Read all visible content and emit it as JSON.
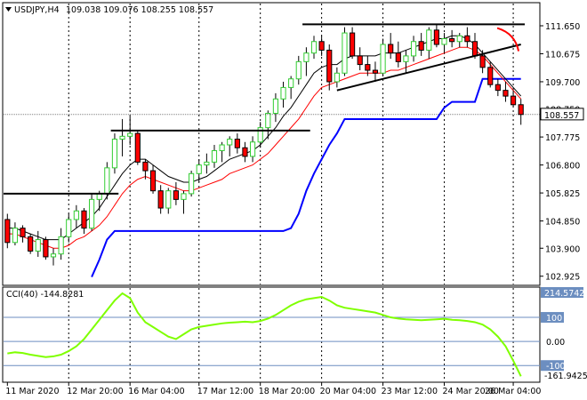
{
  "header": {
    "symbol": "USDJPY,H4",
    "ohlc": "109.038 109.076 108.255 108.557"
  },
  "cci_panel": {
    "label": "CCI(40) -144.8281",
    "max_label": "214.5742",
    "min_label": "-161.9425"
  },
  "price_axis": {
    "ticks": [
      "111.650",
      "110.675",
      "109.700",
      "108.750",
      "107.775",
      "106.800",
      "105.825",
      "104.850",
      "103.900",
      "102.925"
    ],
    "current_price": "108.557"
  },
  "cci_axis": {
    "ticks": [
      "100",
      "0.00",
      "-100"
    ]
  },
  "time_axis": {
    "labels": [
      "11 Mar 2020",
      "12 Mar 20:00",
      "16 Mar 04:00",
      "17 Mar 12:00",
      "18 Mar 20:00",
      "20 Mar 04:00",
      "23 Mar 12:00",
      "24 Mar 20:00",
      "26 Mar 04:00"
    ]
  },
  "colors": {
    "bull": "#32cd32",
    "bear": "#ff0000",
    "upper_band": "#000000",
    "lower_band": "#0000ff",
    "ma_red": "#ff0000",
    "cci_line": "#7fff00",
    "level_line": "#6c8ec0"
  },
  "chart_data": [
    {
      "type": "candlestick",
      "title": "USDJPY,H4",
      "ylim": [
        102.7,
        112.3
      ],
      "y_ticks": [
        111.65,
        110.675,
        109.7,
        108.75,
        107.775,
        106.8,
        105.825,
        104.85,
        103.9,
        102.925
      ],
      "current_price": 108.557,
      "series": [
        {
          "name": "candles",
          "ohlc": [
            [
              104.9,
              105.1,
              103.9,
              104.1
            ],
            [
              104.1,
              104.8,
              104.0,
              104.6
            ],
            [
              104.6,
              104.7,
              104.1,
              104.3
            ],
            [
              104.3,
              104.4,
              103.7,
              103.8
            ],
            [
              103.8,
              104.5,
              103.6,
              104.2
            ],
            [
              104.2,
              104.3,
              103.5,
              103.6
            ],
            [
              103.6,
              103.9,
              103.3,
              103.7
            ],
            [
              103.7,
              104.6,
              103.5,
              104.3
            ],
            [
              104.3,
              105.1,
              104.1,
              104.9
            ],
            [
              104.9,
              105.4,
              104.6,
              105.2
            ],
            [
              105.2,
              105.3,
              104.4,
              104.6
            ],
            [
              104.6,
              105.8,
              104.5,
              105.6
            ],
            [
              105.6,
              105.9,
              105.2,
              105.8
            ],
            [
              105.8,
              106.9,
              105.6,
              106.7
            ],
            [
              106.7,
              107.9,
              106.5,
              107.7
            ],
            [
              107.7,
              108.4,
              107.1,
              107.8
            ],
            [
              107.8,
              108.5,
              107.5,
              107.9
            ],
            [
              107.9,
              108.0,
              106.8,
              106.9
            ],
            [
              106.9,
              107.0,
              106.3,
              106.6
            ],
            [
              106.6,
              106.8,
              105.8,
              105.9
            ],
            [
              105.9,
              106.1,
              105.1,
              105.3
            ],
            [
              105.3,
              106.0,
              105.1,
              105.9
            ],
            [
              105.9,
              106.2,
              105.4,
              105.6
            ],
            [
              105.6,
              105.9,
              105.1,
              105.8
            ],
            [
              105.8,
              106.6,
              105.7,
              106.5
            ],
            [
              106.5,
              107.0,
              106.2,
              106.8
            ],
            [
              106.8,
              107.2,
              106.5,
              106.9
            ],
            [
              106.9,
              107.5,
              106.7,
              107.3
            ],
            [
              107.3,
              107.6,
              106.9,
              107.5
            ],
            [
              107.5,
              107.8,
              107.1,
              107.7
            ],
            [
              107.7,
              107.9,
              107.2,
              107.4
            ],
            [
              107.4,
              107.6,
              106.9,
              107.1
            ],
            [
              107.1,
              107.8,
              106.9,
              107.6
            ],
            [
              107.6,
              108.3,
              107.4,
              108.1
            ],
            [
              108.1,
              108.7,
              107.7,
              108.6
            ],
            [
              108.6,
              109.3,
              108.3,
              109.1
            ],
            [
              109.1,
              109.7,
              108.8,
              109.5
            ],
            [
              109.5,
              109.9,
              109.1,
              109.8
            ],
            [
              109.8,
              110.6,
              109.6,
              110.4
            ],
            [
              110.4,
              110.9,
              109.9,
              110.7
            ],
            [
              110.7,
              111.3,
              110.5,
              111.1
            ],
            [
              111.1,
              111.3,
              110.6,
              110.8
            ],
            [
              110.8,
              111.0,
              109.4,
              109.7
            ],
            [
              109.7,
              110.2,
              109.5,
              110.0
            ],
            [
              110.0,
              111.6,
              109.9,
              111.4
            ],
            [
              111.4,
              111.6,
              110.5,
              110.6
            ],
            [
              110.6,
              110.9,
              110.1,
              110.3
            ],
            [
              110.3,
              110.6,
              109.9,
              110.1
            ],
            [
              110.1,
              110.4,
              109.7,
              110.0
            ],
            [
              110.0,
              111.2,
              109.9,
              111.0
            ],
            [
              111.0,
              111.4,
              110.5,
              110.7
            ],
            [
              110.7,
              111.1,
              110.2,
              110.4
            ],
            [
              110.4,
              110.8,
              110.0,
              110.6
            ],
            [
              110.6,
              111.3,
              110.4,
              111.1
            ],
            [
              111.1,
              111.4,
              110.6,
              110.8
            ],
            [
              110.8,
              111.6,
              110.5,
              111.5
            ],
            [
              111.5,
              111.7,
              110.9,
              111.0
            ],
            [
              111.0,
              111.4,
              110.7,
              111.2
            ],
            [
              111.2,
              111.5,
              110.9,
              111.1
            ],
            [
              111.1,
              111.4,
              110.9,
              111.3
            ],
            [
              111.3,
              111.6,
              110.9,
              111.1
            ],
            [
              111.1,
              111.4,
              110.5,
              110.6
            ],
            [
              110.6,
              110.8,
              110.0,
              110.2
            ],
            [
              110.2,
              110.4,
              109.5,
              109.6
            ],
            [
              109.6,
              109.8,
              109.2,
              109.4
            ],
            [
              109.4,
              109.7,
              109.0,
              109.2
            ],
            [
              109.2,
              109.4,
              108.8,
              108.9
            ],
            [
              108.9,
              109.1,
              108.2,
              108.56
            ]
          ]
        },
        {
          "name": "upper_band",
          "values": [
            105.4,
            105.4,
            105.4,
            105.4,
            105.4,
            105.4,
            105.4,
            105.4,
            105.4,
            105.4,
            105.4,
            105.4,
            105.4,
            105.4,
            108.0,
            108.0,
            108.0,
            108.0,
            108.0,
            108.0,
            108.0,
            108.0,
            108.0,
            108.0,
            108.0,
            108.0,
            108.0,
            108.0,
            108.0,
            108.0,
            108.0,
            108.0,
            108.0,
            108.0,
            108.0,
            108.0,
            108.0,
            108.0,
            108.0,
            111.7,
            111.7,
            111.7,
            111.7,
            111.7,
            111.7,
            111.7,
            111.7,
            111.7,
            111.7,
            111.7,
            111.7,
            111.7,
            111.7,
            111.7,
            111.7,
            111.7,
            111.7,
            111.7,
            111.7,
            111.7,
            111.7,
            111.7,
            111.7,
            111.7,
            111.7,
            111.7,
            111.7,
            111.7
          ]
        },
        {
          "name": "lower_band",
          "values": [
            null,
            null,
            null,
            null,
            null,
            null,
            null,
            null,
            null,
            null,
            null,
            102.9,
            103.5,
            104.2,
            104.5,
            104.5,
            104.5,
            104.5,
            104.5,
            104.5,
            104.5,
            104.5,
            104.5,
            104.5,
            104.5,
            104.5,
            104.5,
            104.5,
            104.5,
            104.5,
            104.5,
            104.5,
            104.5,
            104.5,
            104.5,
            104.5,
            104.5,
            104.6,
            105.1,
            105.9,
            106.5,
            107.0,
            107.5,
            107.9,
            108.4,
            108.4,
            108.4,
            108.4,
            108.4,
            108.4,
            108.4,
            108.4,
            108.4,
            108.4,
            108.4,
            108.4,
            108.4,
            108.8,
            109.0,
            109.0,
            109.0,
            109.0,
            109.8,
            109.8,
            109.8,
            109.8,
            109.8,
            109.8
          ]
        },
        {
          "name": "ma_red",
          "values": [
            104.4,
            104.4,
            104.3,
            104.2,
            104.1,
            104.0,
            103.9,
            103.9,
            104.0,
            104.2,
            104.3,
            104.5,
            104.7,
            105.0,
            105.4,
            105.8,
            106.1,
            106.3,
            106.4,
            106.3,
            106.2,
            106.1,
            106.0,
            105.9,
            105.9,
            106.0,
            106.1,
            106.2,
            106.3,
            106.5,
            106.6,
            106.7,
            106.8,
            107.0,
            107.2,
            107.5,
            107.8,
            108.1,
            108.4,
            108.8,
            109.2,
            109.5,
            109.6,
            109.7,
            109.8,
            109.9,
            110.0,
            110.0,
            110.0,
            110.0,
            110.1,
            110.1,
            110.2,
            110.3,
            110.4,
            110.5,
            110.6,
            110.7,
            110.8,
            110.9,
            110.9,
            110.8,
            110.6,
            110.3,
            110.0,
            109.7,
            109.4,
            109.1
          ]
        },
        {
          "name": "ma_black",
          "values": [
            104.6,
            104.6,
            104.5,
            104.4,
            104.3,
            104.2,
            104.2,
            104.2,
            104.4,
            104.6,
            104.8,
            105.0,
            105.3,
            105.7,
            106.1,
            106.5,
            106.8,
            107.0,
            107.0,
            106.8,
            106.6,
            106.4,
            106.3,
            106.2,
            106.2,
            106.3,
            106.4,
            106.6,
            106.8,
            107.0,
            107.1,
            107.2,
            107.3,
            107.5,
            107.8,
            108.1,
            108.5,
            108.8,
            109.2,
            109.6,
            110.0,
            110.2,
            110.3,
            110.3,
            110.5,
            110.6,
            110.6,
            110.6,
            110.6,
            110.7,
            110.7,
            110.7,
            110.8,
            110.9,
            111.0,
            111.1,
            111.2,
            111.2,
            111.3,
            111.3,
            111.2,
            111.0,
            110.7,
            110.4,
            110.1,
            109.8,
            109.5,
            109.2
          ]
        }
      ],
      "annotations": [
        {
          "type": "hline",
          "value": 105.8,
          "from": 0,
          "to": 14
        },
        {
          "type": "hline",
          "value": 108.0,
          "from": 14,
          "to": 39
        },
        {
          "type": "hline",
          "value": 111.7,
          "from": 39,
          "to": 67
        },
        {
          "type": "trendline",
          "from": [
            43,
            109.4
          ],
          "to": [
            68,
            111.0
          ]
        },
        {
          "type": "arc",
          "near_candle": 66,
          "color": "#ff0000"
        }
      ]
    },
    {
      "type": "line",
      "title": "CCI(40) -144.8281",
      "ylim": [
        -161.9425,
        214.5742
      ],
      "y_ticks": [
        100,
        0,
        -100
      ],
      "series": [
        {
          "name": "CCI(40)",
          "values": [
            -50,
            -45,
            -48,
            -55,
            -60,
            -65,
            -62,
            -55,
            -40,
            -20,
            10,
            50,
            90,
            130,
            170,
            200,
            180,
            120,
            80,
            60,
            40,
            20,
            10,
            30,
            50,
            60,
            65,
            70,
            75,
            78,
            80,
            82,
            80,
            85,
            95,
            110,
            130,
            150,
            165,
            175,
            180,
            185,
            170,
            150,
            140,
            135,
            130,
            125,
            120,
            110,
            100,
            95,
            92,
            90,
            88,
            90,
            92,
            94,
            90,
            88,
            85,
            80,
            70,
            50,
            20,
            -20,
            -80,
            -144.83
          ]
        }
      ]
    }
  ]
}
